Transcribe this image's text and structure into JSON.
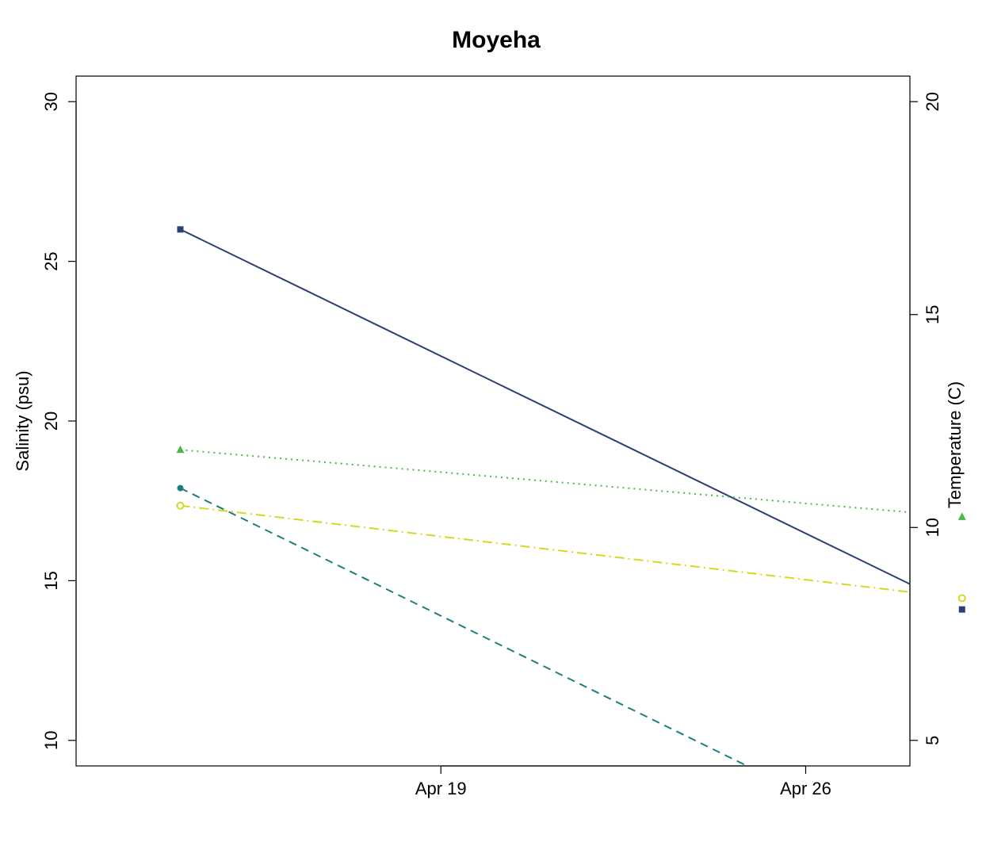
{
  "chart_data": {
    "type": "line",
    "title": "Moyeha",
    "xlabel": "",
    "ylabel_left": "Salinity (psu)",
    "ylabel_right": "Temperature (C)",
    "x_axis": {
      "type": "date",
      "range": [
        "2021-04-12",
        "2021-04-28"
      ],
      "ticks": [
        {
          "value": "2021-04-19",
          "label": "Apr 19"
        },
        {
          "value": "2021-04-26",
          "label": "Apr 26"
        }
      ]
    },
    "y_left": {
      "range": [
        9.2,
        30.8
      ],
      "ticks": [
        10,
        15,
        20,
        25,
        30
      ],
      "tick_labels": [
        "10",
        "15",
        "20",
        "25",
        "30"
      ]
    },
    "y_right": {
      "range": [
        4.4,
        20.6
      ],
      "ticks": [
        5,
        10,
        15,
        20
      ],
      "tick_labels": [
        "5",
        "10",
        "15",
        "20"
      ]
    },
    "grid": false,
    "legend": "none",
    "series": [
      {
        "axis": "left",
        "color": "#2b3f73",
        "line_style": "solid",
        "marker": "square-filled",
        "points": [
          {
            "x": "2021-04-14",
            "y": 26.0
          },
          {
            "x": "2021-04-29",
            "y": 14.1
          }
        ]
      },
      {
        "axis": "left",
        "color": "#4cb84a",
        "line_style": "dotted",
        "marker": "triangle-filled",
        "points": [
          {
            "x": "2021-04-14",
            "y": 19.1
          },
          {
            "x": "2021-04-29",
            "y": 17.0
          }
        ]
      },
      {
        "axis": "left",
        "color": "#1e7f7a",
        "line_style": "dashed",
        "marker": "circle-filled",
        "points": [
          {
            "x": "2021-04-14",
            "y": 17.9
          },
          {
            "x": "2021-04-29",
            "y": 5.9
          }
        ]
      },
      {
        "axis": "left",
        "color": "#d5d81f",
        "line_style": "dashdot",
        "marker": "circle-open",
        "points": [
          {
            "x": "2021-04-14",
            "y": 17.35
          },
          {
            "x": "2021-04-29",
            "y": 14.45
          }
        ]
      }
    ]
  }
}
